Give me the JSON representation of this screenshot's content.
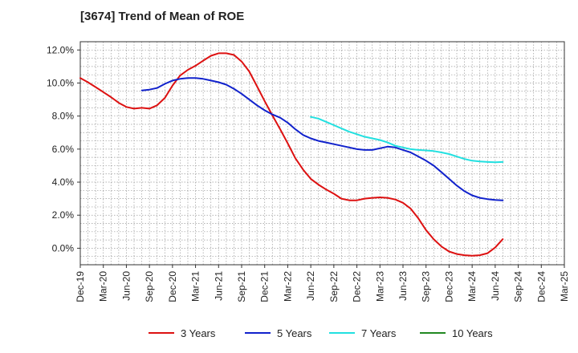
{
  "chart_data": {
    "type": "line",
    "title": "[3674]  Trend of Mean of ROE",
    "xlabel": "",
    "ylabel": "",
    "ylim": [
      -1.0,
      12.5
    ],
    "yticks": [
      0,
      2,
      4,
      6,
      8,
      10,
      12
    ],
    "ytick_labels": [
      "0.0%",
      "2.0%",
      "4.0%",
      "6.0%",
      "8.0%",
      "10.0%",
      "12.0%"
    ],
    "categories": [
      "Dec-19",
      "Mar-20",
      "Jun-20",
      "Sep-20",
      "Dec-20",
      "Mar-21",
      "Jun-21",
      "Sep-21",
      "Dec-21",
      "Mar-22",
      "Jun-22",
      "Sep-22",
      "Dec-22",
      "Mar-23",
      "Jun-23",
      "Sep-23",
      "Dec-23",
      "Mar-24",
      "Jun-24",
      "Sep-24",
      "Dec-24",
      "Mar-25"
    ],
    "grid": true,
    "legend_position": "bottom",
    "series": [
      {
        "name": "3 Years",
        "color": "#dd1111",
        "points": [
          [
            0,
            10.3
          ],
          [
            0.33,
            10.05
          ],
          [
            0.67,
            9.75
          ],
          [
            1,
            9.45
          ],
          [
            1.33,
            9.15
          ],
          [
            1.67,
            8.8
          ],
          [
            2,
            8.55
          ],
          [
            2.33,
            8.45
          ],
          [
            2.67,
            8.5
          ],
          [
            3,
            8.45
          ],
          [
            3.33,
            8.65
          ],
          [
            3.67,
            9.1
          ],
          [
            4,
            9.85
          ],
          [
            4.33,
            10.45
          ],
          [
            4.67,
            10.8
          ],
          [
            5,
            11.05
          ],
          [
            5.33,
            11.35
          ],
          [
            5.67,
            11.65
          ],
          [
            6,
            11.8
          ],
          [
            6.33,
            11.8
          ],
          [
            6.67,
            11.7
          ],
          [
            7,
            11.3
          ],
          [
            7.33,
            10.7
          ],
          [
            7.67,
            9.8
          ],
          [
            8,
            8.9
          ],
          [
            8.33,
            8.05
          ],
          [
            8.67,
            7.2
          ],
          [
            9,
            6.35
          ],
          [
            9.33,
            5.45
          ],
          [
            9.67,
            4.75
          ],
          [
            10,
            4.2
          ],
          [
            10.33,
            3.85
          ],
          [
            10.67,
            3.55
          ],
          [
            11,
            3.3
          ],
          [
            11.33,
            3.0
          ],
          [
            11.67,
            2.9
          ],
          [
            12,
            2.9
          ],
          [
            12.33,
            3.0
          ],
          [
            12.67,
            3.05
          ],
          [
            13,
            3.08
          ],
          [
            13.33,
            3.05
          ],
          [
            13.67,
            2.95
          ],
          [
            14,
            2.75
          ],
          [
            14.33,
            2.4
          ],
          [
            14.67,
            1.8
          ],
          [
            15,
            1.1
          ],
          [
            15.33,
            0.55
          ],
          [
            15.67,
            0.1
          ],
          [
            16,
            -0.2
          ],
          [
            16.33,
            -0.35
          ],
          [
            16.67,
            -0.42
          ],
          [
            17,
            -0.45
          ],
          [
            17.33,
            -0.42
          ],
          [
            17.67,
            -0.3
          ],
          [
            18,
            0.05
          ],
          [
            18.33,
            0.55
          ]
        ]
      },
      {
        "name": "5 Years",
        "color": "#1122cc",
        "points": [
          [
            2.67,
            9.55
          ],
          [
            3,
            9.6
          ],
          [
            3.33,
            9.7
          ],
          [
            3.67,
            9.95
          ],
          [
            4,
            10.15
          ],
          [
            4.33,
            10.25
          ],
          [
            4.67,
            10.3
          ],
          [
            5,
            10.3
          ],
          [
            5.33,
            10.25
          ],
          [
            5.67,
            10.15
          ],
          [
            6,
            10.05
          ],
          [
            6.33,
            9.9
          ],
          [
            6.67,
            9.65
          ],
          [
            7,
            9.35
          ],
          [
            7.33,
            9.0
          ],
          [
            7.67,
            8.65
          ],
          [
            8,
            8.35
          ],
          [
            8.33,
            8.1
          ],
          [
            8.67,
            7.9
          ],
          [
            9,
            7.6
          ],
          [
            9.33,
            7.2
          ],
          [
            9.67,
            6.85
          ],
          [
            10,
            6.65
          ],
          [
            10.33,
            6.5
          ],
          [
            10.67,
            6.4
          ],
          [
            11,
            6.3
          ],
          [
            11.33,
            6.2
          ],
          [
            11.67,
            6.1
          ],
          [
            12,
            6.0
          ],
          [
            12.33,
            5.95
          ],
          [
            12.67,
            5.95
          ],
          [
            13,
            6.05
          ],
          [
            13.33,
            6.15
          ],
          [
            13.67,
            6.1
          ],
          [
            14,
            5.95
          ],
          [
            14.33,
            5.8
          ],
          [
            14.67,
            5.55
          ],
          [
            15,
            5.3
          ],
          [
            15.33,
            5.0
          ],
          [
            15.67,
            4.6
          ],
          [
            16,
            4.2
          ],
          [
            16.33,
            3.8
          ],
          [
            16.67,
            3.45
          ],
          [
            17,
            3.2
          ],
          [
            17.33,
            3.05
          ],
          [
            17.67,
            2.97
          ],
          [
            18,
            2.92
          ],
          [
            18.33,
            2.9
          ]
        ]
      },
      {
        "name": "7 Years",
        "color": "#22e0e0",
        "points": [
          [
            10,
            7.95
          ],
          [
            10.33,
            7.85
          ],
          [
            10.67,
            7.65
          ],
          [
            11,
            7.45
          ],
          [
            11.33,
            7.25
          ],
          [
            11.67,
            7.05
          ],
          [
            12,
            6.9
          ],
          [
            12.33,
            6.75
          ],
          [
            12.67,
            6.65
          ],
          [
            13,
            6.55
          ],
          [
            13.33,
            6.4
          ],
          [
            13.67,
            6.2
          ],
          [
            14,
            6.1
          ],
          [
            14.33,
            6.0
          ],
          [
            14.67,
            5.95
          ],
          [
            15,
            5.92
          ],
          [
            15.33,
            5.88
          ],
          [
            15.67,
            5.8
          ],
          [
            16,
            5.7
          ],
          [
            16.33,
            5.55
          ],
          [
            16.67,
            5.4
          ],
          [
            17,
            5.3
          ],
          [
            17.33,
            5.25
          ],
          [
            17.67,
            5.22
          ],
          [
            18,
            5.2
          ],
          [
            18.33,
            5.22
          ]
        ]
      },
      {
        "name": "10 Years",
        "color": "#228822",
        "points": []
      }
    ]
  }
}
